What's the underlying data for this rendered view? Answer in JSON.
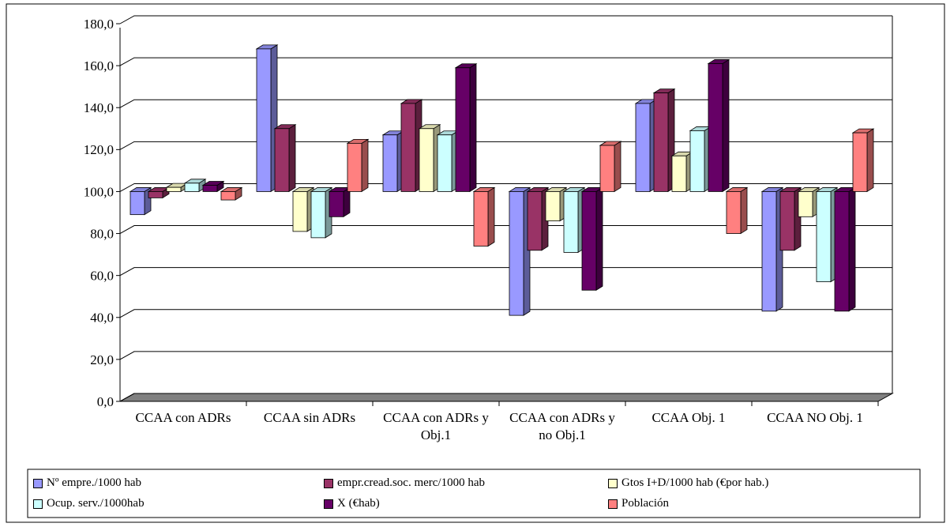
{
  "chart_data": {
    "type": "bar3d",
    "categories": [
      "CCAA con ADRs",
      "CCAA sin ADRs",
      "CCAA con ADRs y Obj.1",
      "CCAA con ADRs y no Obj.1",
      "CCAA Obj. 1",
      "CCAA NO Obj. 1"
    ],
    "axis_crossing": 100,
    "series": [
      {
        "name": "Nº empre./1000 hab",
        "color": "#9999FF",
        "values": [
          89,
          168,
          127,
          41,
          142,
          43
        ]
      },
      {
        "name": "empr.cread.soc. merc/1000 hab",
        "color": "#993366",
        "values": [
          97,
          130,
          142,
          72,
          147,
          72
        ]
      },
      {
        "name": "Gtos I+D/1000 hab (€por hab.)",
        "color": "#FFFFCC",
        "values": [
          102,
          81,
          130,
          86,
          117,
          88
        ]
      },
      {
        "name": "Ocup. serv./1000hab",
        "color": "#CCFFFF",
        "values": [
          104,
          78,
          127,
          71,
          129,
          57
        ]
      },
      {
        "name": "X (€hab)",
        "color": "#660066",
        "values": [
          103,
          88,
          159,
          53,
          161,
          43
        ]
      },
      {
        "name": "Población",
        "color": "#FF8080",
        "values": [
          96,
          123,
          74,
          122,
          80,
          128
        ]
      }
    ],
    "ylim": [
      0,
      180
    ],
    "yticks": [
      {
        "value": 0,
        "label": "0,0"
      },
      {
        "value": 20,
        "label": "20,0"
      },
      {
        "value": 40,
        "label": "40,0"
      },
      {
        "value": 60,
        "label": "60,0"
      },
      {
        "value": 80,
        "label": "80,0"
      },
      {
        "value": 100,
        "label": "100,0"
      },
      {
        "value": 120,
        "label": "120,0"
      },
      {
        "value": 140,
        "label": "140,0"
      },
      {
        "value": 160,
        "label": "160,0"
      },
      {
        "value": 180,
        "label": "180,0"
      }
    ],
    "grid": true,
    "legend": "bottom"
  }
}
